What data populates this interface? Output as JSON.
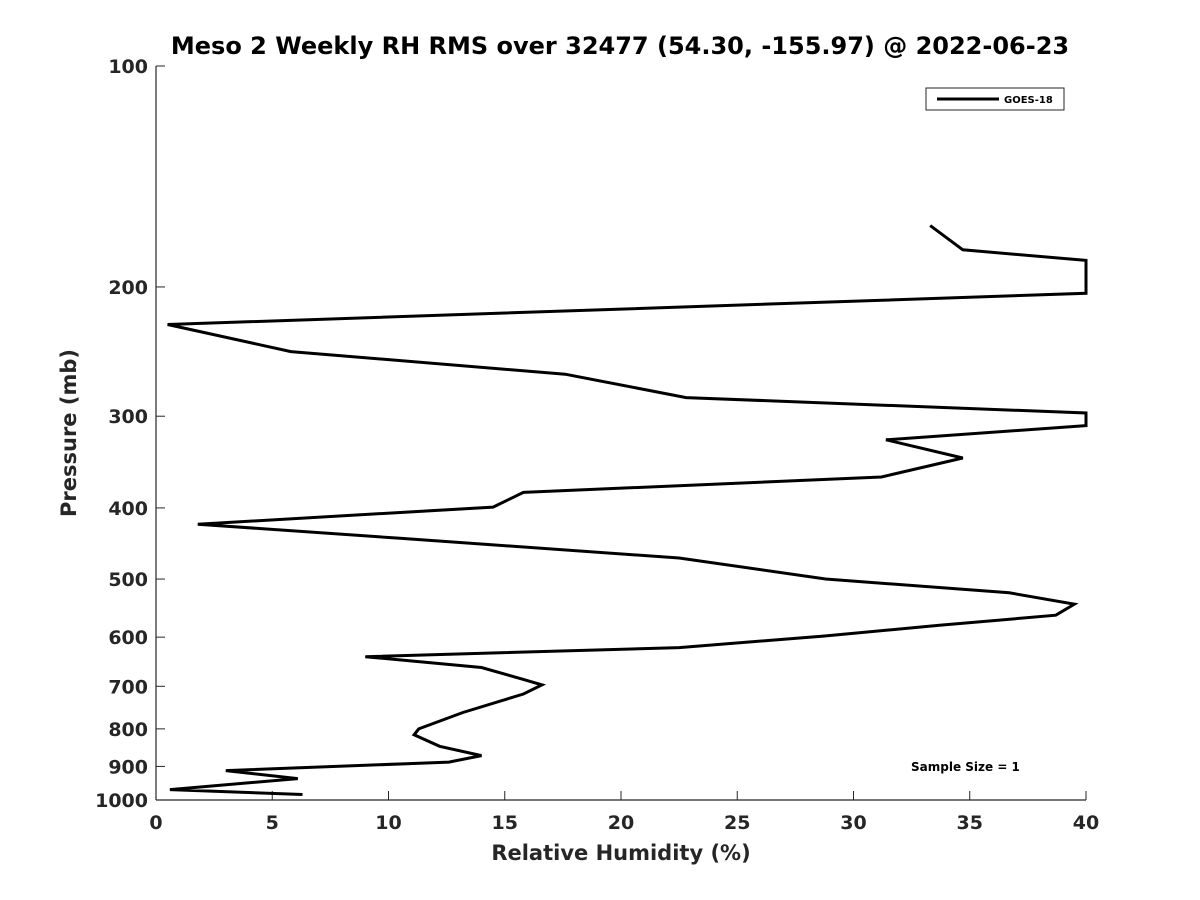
{
  "chart_data": {
    "type": "line",
    "title": "Meso 2 Weekly RH RMS over 32477 (54.30, -155.97) @ 2022-06-23",
    "xlabel": "Relative Humidity (%)",
    "ylabel": "Pressure (mb)",
    "xlim": [
      0,
      40
    ],
    "ylim": [
      100,
      1000
    ],
    "y_scale": "log",
    "y_reversed": true,
    "x_ticks": [
      0,
      5,
      10,
      15,
      20,
      25,
      30,
      35,
      40
    ],
    "y_ticks": [
      100,
      200,
      300,
      400,
      500,
      600,
      700,
      800,
      900,
      1000
    ],
    "legend_location": "top-right",
    "grid": false,
    "annotation": "Sample Size = 1",
    "series": [
      {
        "name": "GOES-18",
        "color": "#000000",
        "points": [
          [
            33.3,
            165
          ],
          [
            34.7,
            178
          ],
          [
            40,
            184
          ],
          [
            40,
            204
          ],
          [
            0.5,
            225
          ],
          [
            5.8,
            245
          ],
          [
            17.6,
            263
          ],
          [
            22.8,
            283
          ],
          [
            40,
            297
          ],
          [
            40,
            309
          ],
          [
            31.4,
            323
          ],
          [
            34.7,
            342
          ],
          [
            31.2,
            363
          ],
          [
            15.8,
            381
          ],
          [
            14.5,
            399
          ],
          [
            1.8,
            421
          ],
          [
            10.5,
            440
          ],
          [
            22.5,
            468
          ],
          [
            28.8,
            500
          ],
          [
            36.7,
            522
          ],
          [
            39.5,
            541
          ],
          [
            38.7,
            560
          ],
          [
            33.7,
            578
          ],
          [
            28.7,
            598
          ],
          [
            22.5,
            620
          ],
          [
            9.0,
            638
          ],
          [
            14.0,
            660
          ],
          [
            15.8,
            685
          ],
          [
            16.6,
            697
          ],
          [
            15.8,
            717
          ],
          [
            13.2,
            760
          ],
          [
            11.3,
            800
          ],
          [
            11.1,
            815
          ],
          [
            12.2,
            845
          ],
          [
            14.0,
            870
          ],
          [
            12.6,
            888
          ],
          [
            3.0,
            912
          ],
          [
            6.1,
            935
          ],
          [
            0.6,
            968
          ],
          [
            6.3,
            983
          ]
        ]
      }
    ]
  }
}
